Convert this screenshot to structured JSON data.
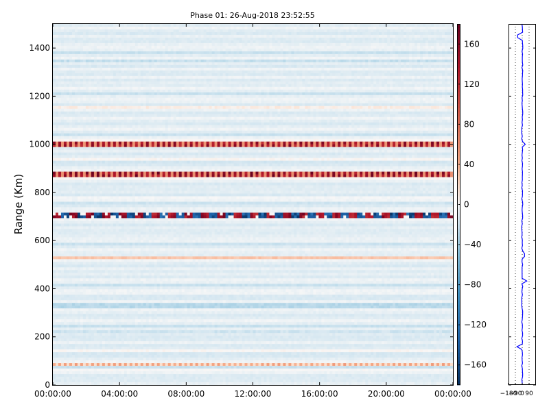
{
  "chart_data": [
    {
      "type": "heatmap",
      "title": "Phase 01: 26-Aug-2018 23:52:55",
      "ylabel": "Range (Km)",
      "xlabel": "",
      "x_tick_labels": [
        "00:00:00",
        "04:00:00",
        "08:00:00",
        "12:00:00",
        "16:00:00",
        "20:00:00",
        "00:00:00"
      ],
      "x_range_hours": [
        0,
        24
      ],
      "y_ticks": [
        0,
        200,
        400,
        600,
        800,
        1000,
        1200,
        1400
      ],
      "ylim": [
        0,
        1500
      ],
      "colormap": "RdBu_r",
      "colorbar": {
        "range": [
          -180,
          180
        ],
        "ticks": [
          -160,
          -120,
          -80,
          -40,
          0,
          40,
          80,
          120,
          160
        ],
        "tick_labels": [
          "−160",
          "−120",
          "−80",
          "−40",
          "0",
          "40",
          "80",
          "120",
          "160"
        ]
      },
      "background_phase": -10,
      "bands": [
        {
          "range_km": 1000,
          "phase": 160,
          "pattern": "dashed"
        },
        {
          "range_km": 875,
          "phase": 170,
          "pattern": "dashed"
        },
        {
          "range_km": 705,
          "phase": 0,
          "pattern": "alternating",
          "note": "alternating +170 / -170"
        },
        {
          "range_km": 530,
          "phase": 30,
          "pattern": "faint"
        },
        {
          "range_km": 85,
          "phase": 50,
          "pattern": "dashed"
        },
        {
          "range_km": 1150,
          "phase": 8,
          "pattern": "faint"
        },
        {
          "range_km": 1350,
          "phase": -25,
          "pattern": "faint"
        },
        {
          "range_km": 330,
          "phase": -30,
          "pattern": "faint"
        },
        {
          "range_km": 220,
          "phase": -20,
          "pattern": "faint"
        }
      ],
      "grid": false
    },
    {
      "type": "line",
      "description_panel": "mean phase profile",
      "x_tick_labels": [
        "−180",
        "−90",
        "0",
        "90"
      ],
      "xlim": [
        -180,
        180
      ],
      "ylim": [
        0,
        1500
      ],
      "vertical_grid": "dotted",
      "color": "#0000ff"
    }
  ]
}
